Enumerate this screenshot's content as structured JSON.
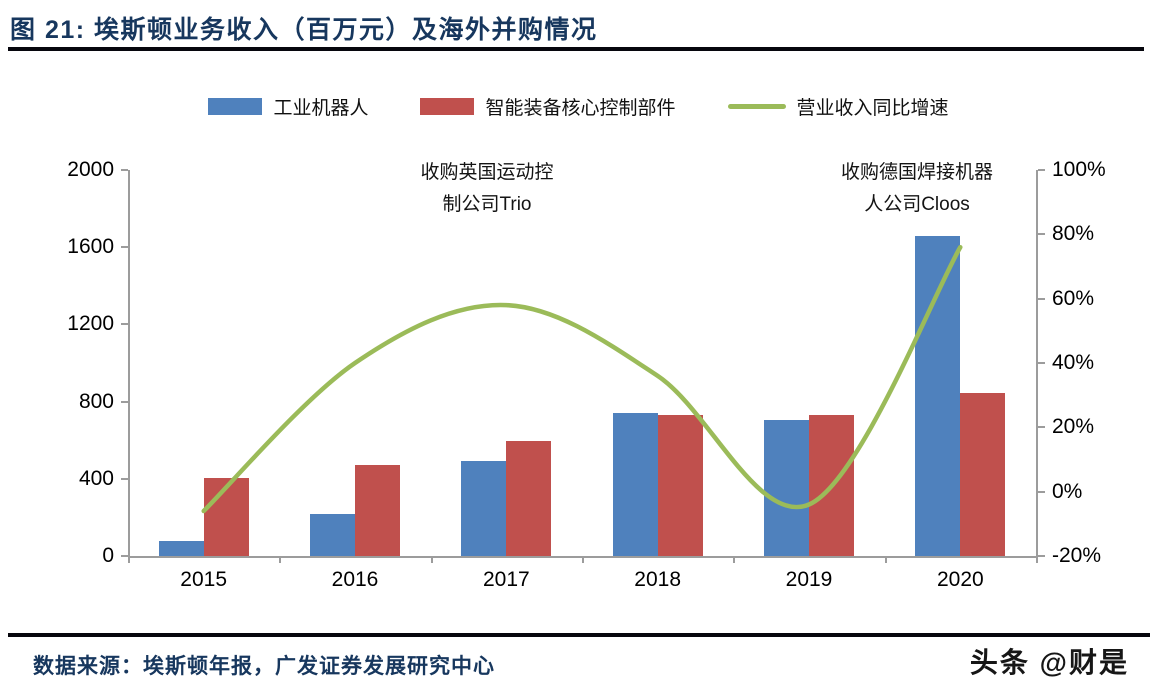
{
  "header": {
    "title": "图 21:  埃斯顿业务收入（百万元）及海外并购情况"
  },
  "legend": [
    {
      "label": "工业机器人",
      "color": "#4F81BD",
      "swatch": "box"
    },
    {
      "label": "智能装备核心控制部件",
      "color": "#C0504D",
      "swatch": "box"
    },
    {
      "label": "营业收入同比增速",
      "color": "#9BBB59",
      "swatch": "line"
    }
  ],
  "annotations": [
    {
      "line1": "收购英国运动控",
      "line2": "制公司Trio"
    },
    {
      "line1": "收购德国焊接机器",
      "line2": "人公司Cloos"
    }
  ],
  "chart_data": {
    "type": "bar",
    "subtype": "grouped-bars-with-smooth-line",
    "categories": [
      "2015",
      "2016",
      "2017",
      "2018",
      "2019",
      "2020"
    ],
    "series": [
      {
        "name": "工业机器人",
        "type": "bar",
        "axis": "left",
        "color": "#4F81BD",
        "values": [
          80,
          220,
          490,
          740,
          705,
          1660
        ]
      },
      {
        "name": "智能装备核心控制部件",
        "type": "bar",
        "axis": "left",
        "color": "#C0504D",
        "values": [
          405,
          470,
          595,
          730,
          730,
          845
        ]
      },
      {
        "name": "营业收入同比增速",
        "type": "line",
        "axis": "right",
        "unit": "%",
        "color": "#9BBB59",
        "values": [
          -6,
          40,
          58,
          36,
          -4,
          76
        ]
      }
    ],
    "left_axis": {
      "min": 0,
      "max": 2000,
      "tick_labels": [
        "2000",
        "1600",
        "1200",
        "800",
        "400",
        "0"
      ]
    },
    "right_axis": {
      "min": -20,
      "max": 100,
      "tick_labels": [
        "100%",
        "80%",
        "60%",
        "40%",
        "20%",
        "0%",
        "-20%"
      ]
    },
    "grid": false,
    "legend_position": "top",
    "title": "埃斯顿业务收入（百万元）及海外并购情况"
  },
  "footer": {
    "source": "数据来源：埃斯顿年报，广发证券发展研究中心",
    "watermark": "头条 @财是"
  },
  "colors": {
    "bar_blue": "#4F81BD",
    "bar_red": "#C0504D",
    "line_green": "#9BBB59",
    "title_navy": "#17375E",
    "axis_gray": "#9c9c9c",
    "rule_black": "#06060d"
  }
}
